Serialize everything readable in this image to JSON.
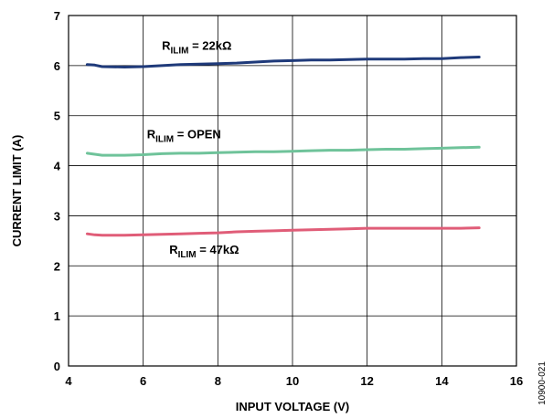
{
  "chart_data": {
    "type": "line",
    "title": "",
    "xlabel": "INPUT VOLTAGE (V)",
    "ylabel": "CURRENT LIMIT (A)",
    "xlim": [
      4,
      16
    ],
    "ylim": [
      0,
      7
    ],
    "xticks": [
      4,
      6,
      8,
      10,
      12,
      14,
      16
    ],
    "yticks": [
      0,
      1,
      2,
      3,
      4,
      5,
      6,
      7
    ],
    "grid": true,
    "legend": "inline",
    "series": [
      {
        "name": "RILIM = 22kΩ",
        "label_main": "R",
        "label_sub": "ILIM",
        "label_rest": " = 22kΩ",
        "color": "#1f3a7a",
        "x": [
          4.5,
          4.7,
          4.9,
          5.5,
          6.0,
          6.5,
          7.0,
          7.5,
          8.0,
          8.5,
          9.0,
          9.5,
          10.0,
          10.5,
          11.0,
          11.5,
          12.0,
          12.5,
          13.0,
          13.5,
          14.0,
          14.5,
          15.0
        ],
        "y": [
          6.02,
          6.01,
          5.98,
          5.97,
          5.98,
          6.0,
          6.02,
          6.03,
          6.04,
          6.05,
          6.07,
          6.09,
          6.1,
          6.11,
          6.11,
          6.12,
          6.13,
          6.13,
          6.13,
          6.14,
          6.14,
          6.16,
          6.17
        ]
      },
      {
        "name": "RILIM = OPEN",
        "label_main": "R",
        "label_sub": "ILIM",
        "label_rest": " = OPEN",
        "color": "#6fc39a",
        "x": [
          4.5,
          4.7,
          4.9,
          5.5,
          6.0,
          6.5,
          7.0,
          7.5,
          8.0,
          8.5,
          9.0,
          9.5,
          10.0,
          10.5,
          11.0,
          11.5,
          12.0,
          12.5,
          13.0,
          13.5,
          14.0,
          14.5,
          15.0
        ],
        "y": [
          4.25,
          4.23,
          4.21,
          4.21,
          4.22,
          4.24,
          4.25,
          4.25,
          4.26,
          4.27,
          4.28,
          4.28,
          4.29,
          4.3,
          4.31,
          4.31,
          4.32,
          4.33,
          4.33,
          4.34,
          4.35,
          4.36,
          4.37
        ]
      },
      {
        "name": "RILIM = 47kΩ",
        "label_main": "R",
        "label_sub": "ILIM",
        "label_rest": " = 47kΩ",
        "color": "#e05d78",
        "x": [
          4.5,
          4.7,
          4.9,
          5.5,
          6.0,
          6.5,
          7.0,
          7.5,
          8.0,
          8.5,
          9.0,
          9.5,
          10.0,
          10.5,
          11.0,
          11.5,
          12.0,
          12.5,
          13.0,
          13.5,
          14.0,
          14.5,
          15.0
        ],
        "y": [
          2.64,
          2.62,
          2.61,
          2.61,
          2.62,
          2.63,
          2.64,
          2.65,
          2.66,
          2.68,
          2.69,
          2.7,
          2.71,
          2.72,
          2.73,
          2.74,
          2.75,
          2.75,
          2.75,
          2.75,
          2.75,
          2.75,
          2.76
        ]
      }
    ]
  },
  "figure_id": "10900-021"
}
